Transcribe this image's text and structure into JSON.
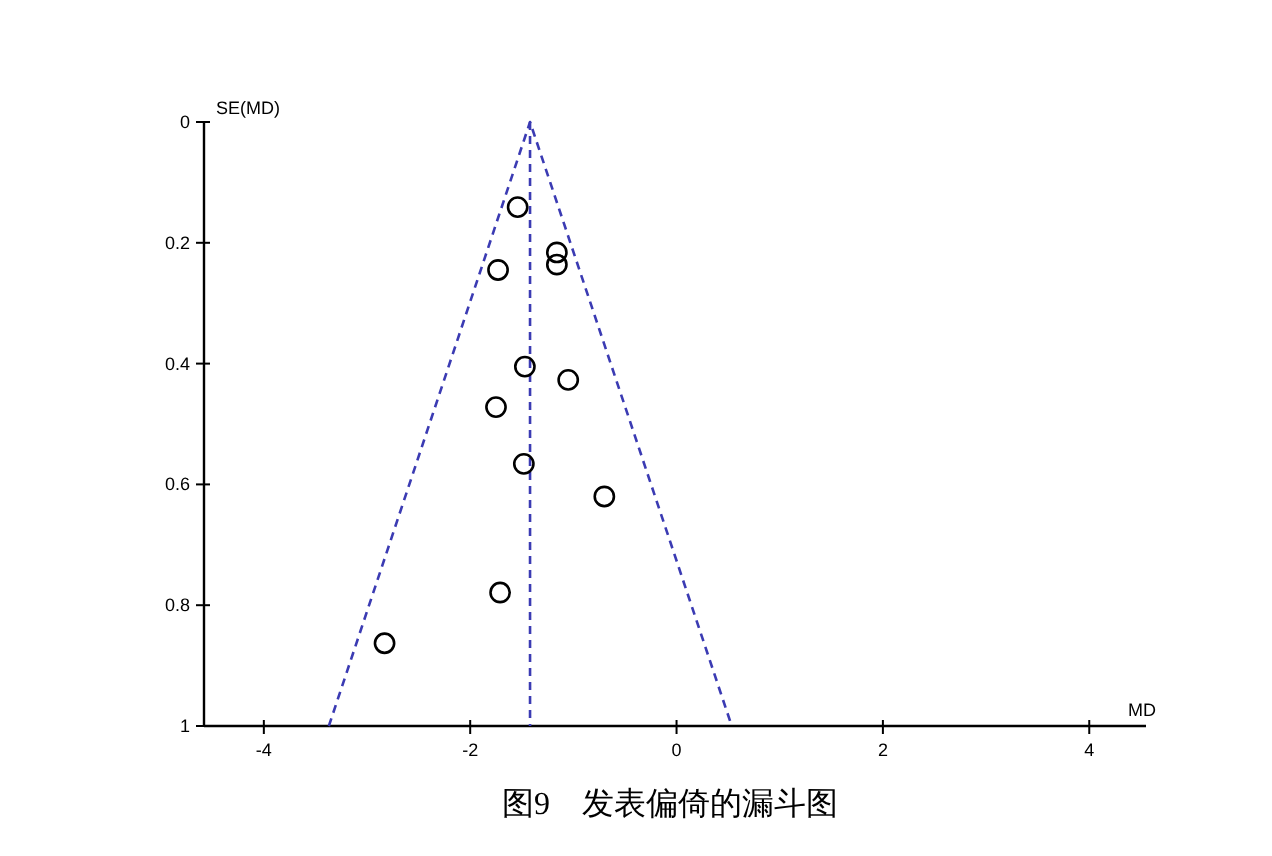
{
  "chart_data": {
    "type": "scatter",
    "xlabel": "MD",
    "ylabel": "SE(MD)",
    "annotations": [
      "图9　发表偏倚的漏斗图"
    ],
    "xlim": [
      -4.58,
      4.55
    ],
    "xticks": [
      -4,
      -2,
      0,
      2,
      4
    ],
    "ylim": [
      1,
      0
    ],
    "yticks": [
      0,
      0.2,
      0.4,
      0.6,
      0.8,
      1
    ],
    "grid": false,
    "ref_lines": [
      {
        "axis": "x",
        "value": -1.42,
        "color": "#3b3bb3",
        "line_style": "dashed"
      }
    ],
    "series": [
      {
        "color": "#000000",
        "marker": "circle",
        "x": [
          -1.54,
          -1.16,
          -1.16,
          -1.73,
          -1.47,
          -1.05,
          -1.75,
          -1.48,
          -0.7,
          -1.71,
          -2.83
        ],
        "values": [
          0.141,
          0.216,
          0.236,
          0.245,
          0.405,
          0.427,
          0.472,
          0.566,
          0.62,
          0.779,
          0.863
        ]
      },
      {
        "type": "line",
        "color": "#3b3bb3",
        "marker": "none",
        "line_style": "dashed",
        "x": [
          -3.37,
          -1.42,
          0.535
        ],
        "values": [
          1,
          0,
          1
        ]
      }
    ]
  }
}
